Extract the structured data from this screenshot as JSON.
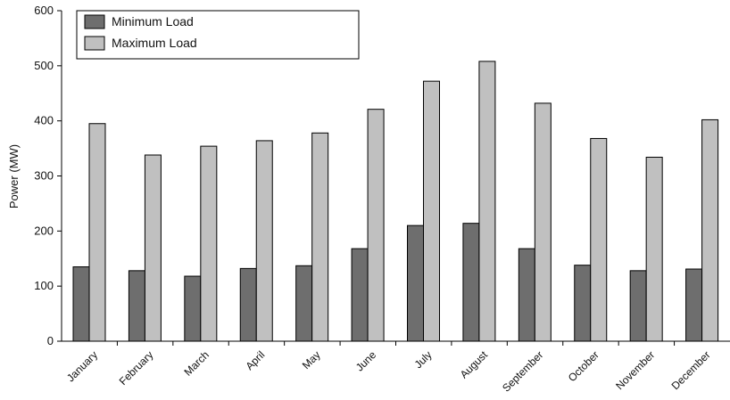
{
  "chart_data": {
    "type": "bar",
    "title": "",
    "xlabel": "",
    "ylabel": "Power (MW)",
    "ylim": [
      0,
      600
    ],
    "yticks": [
      0,
      100,
      200,
      300,
      400,
      500,
      600
    ],
    "grid": false,
    "legend_position": "top-left",
    "categories": [
      "January",
      "February",
      "March",
      "April",
      "May",
      "June",
      "July",
      "August",
      "September",
      "October",
      "November",
      "December"
    ],
    "series": [
      {
        "name": "Minimum Load",
        "color": "#6e6e6e",
        "values": [
          135,
          128,
          118,
          132,
          137,
          168,
          210,
          214,
          168,
          138,
          128,
          131
        ]
      },
      {
        "name": "Maximum Load",
        "color": "#c0c0c0",
        "values": [
          395,
          338,
          354,
          364,
          378,
          421,
          472,
          508,
          432,
          368,
          334,
          402
        ]
      }
    ]
  }
}
